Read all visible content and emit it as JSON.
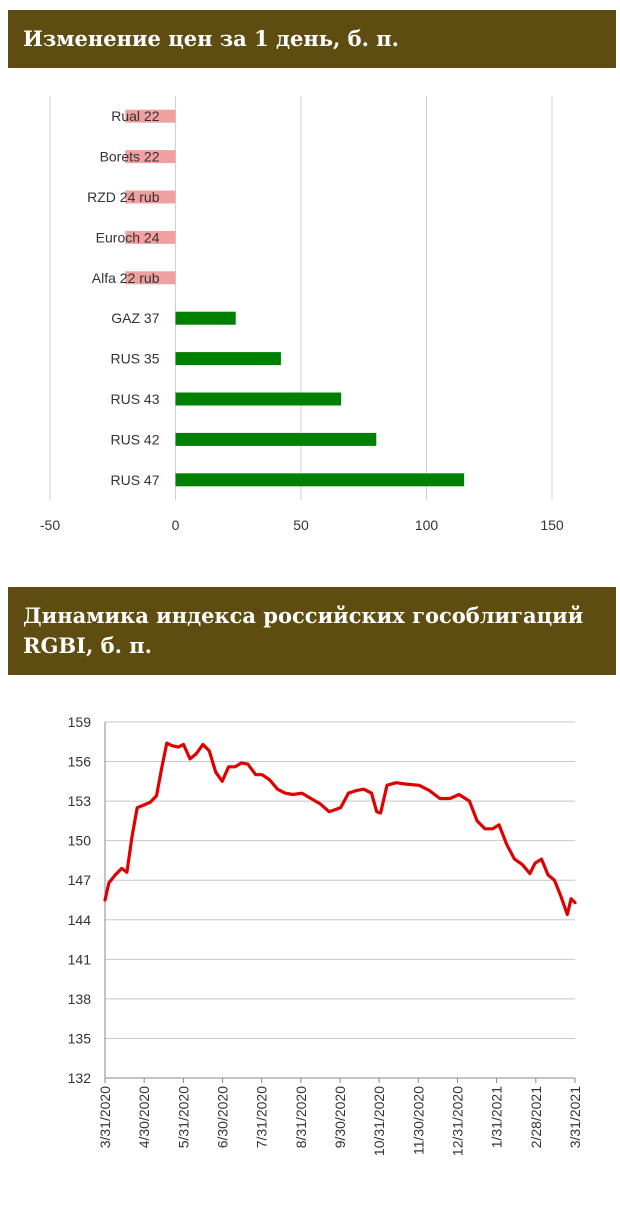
{
  "chart_data": [
    {
      "type": "bar",
      "orientation": "horizontal",
      "title": "Изменение цен за 1 день, б. п.",
      "categories": [
        "Rual 22",
        "Borets 22",
        "RZD 24 rub",
        "Euroch 24",
        "Alfa 22 rub",
        "GAZ 37",
        "RUS 35",
        "RUS 43",
        "RUS 42",
        "RUS 47"
      ],
      "values": [
        -20,
        -20,
        -20,
        -20,
        -20,
        24,
        42,
        66,
        80,
        115
      ],
      "xlim": [
        -50,
        150
      ],
      "xticks": [
        "-50",
        "0",
        "50",
        "100",
        "150"
      ],
      "grid": true,
      "colors": {
        "negative": "#f0a0a0",
        "positive": "#008000"
      }
    },
    {
      "type": "line",
      "title": "Динамика индекса российских гособлигаций RGBI, б. п.",
      "ylim": [
        132,
        159
      ],
      "yticks": [
        "159",
        "156",
        "153",
        "150",
        "147",
        "144",
        "141",
        "138",
        "135",
        "132"
      ],
      "xticks": [
        "3/31/2020",
        "4/30/2020",
        "5/31/2020",
        "6/30/2020",
        "7/31/2020",
        "8/31/2020",
        "9/30/2020",
        "10/31/2020",
        "11/30/2020",
        "12/31/2020",
        "1/31/2021",
        "2/28/2021",
        "3/31/2021"
      ],
      "grid": true,
      "series": [
        {
          "color": "#e00000",
          "points": [
            [
              "2020-03-31",
              145.5
            ],
            [
              "2020-04-03",
              146.8
            ],
            [
              "2020-04-08",
              147.4
            ],
            [
              "2020-04-13",
              147.9
            ],
            [
              "2020-04-17",
              147.6
            ],
            [
              "2020-04-21",
              150.3
            ],
            [
              "2020-04-25",
              152.5
            ],
            [
              "2020-04-30",
              152.7
            ],
            [
              "2020-05-05",
              152.9
            ],
            [
              "2020-05-10",
              153.4
            ],
            [
              "2020-05-14",
              155.5
            ],
            [
              "2020-05-18",
              157.4
            ],
            [
              "2020-05-22",
              157.2
            ],
            [
              "2020-05-27",
              157.1
            ],
            [
              "2020-05-31",
              157.3
            ],
            [
              "2020-06-05",
              156.2
            ],
            [
              "2020-06-10",
              156.6
            ],
            [
              "2020-06-15",
              157.3
            ],
            [
              "2020-06-20",
              156.8
            ],
            [
              "2020-06-25",
              155.2
            ],
            [
              "2020-06-30",
              154.5
            ],
            [
              "2020-07-05",
              155.6
            ],
            [
              "2020-07-10",
              155.6
            ],
            [
              "2020-07-15",
              155.9
            ],
            [
              "2020-07-20",
              155.8
            ],
            [
              "2020-07-26",
              155.0
            ],
            [
              "2020-07-31",
              155.0
            ],
            [
              "2020-08-06",
              154.6
            ],
            [
              "2020-08-12",
              153.9
            ],
            [
              "2020-08-18",
              153.6
            ],
            [
              "2020-08-24",
              153.5
            ],
            [
              "2020-08-31",
              153.6
            ],
            [
              "2020-09-07",
              153.2
            ],
            [
              "2020-09-14",
              152.8
            ],
            [
              "2020-09-21",
              152.2
            ],
            [
              "2020-09-30",
              152.5
            ],
            [
              "2020-10-06",
              153.6
            ],
            [
              "2020-10-12",
              153.8
            ],
            [
              "2020-10-18",
              153.9
            ],
            [
              "2020-10-24",
              153.6
            ],
            [
              "2020-10-28",
              152.2
            ],
            [
              "2020-10-31",
              152.1
            ],
            [
              "2020-11-05",
              154.2
            ],
            [
              "2020-11-12",
              154.4
            ],
            [
              "2020-11-19",
              154.3
            ],
            [
              "2020-11-30",
              154.2
            ],
            [
              "2020-12-08",
              153.8
            ],
            [
              "2020-12-16",
              153.2
            ],
            [
              "2020-12-24",
              153.2
            ],
            [
              "2020-12-31",
              153.5
            ],
            [
              "2021-01-08",
              153.0
            ],
            [
              "2021-01-14",
              151.5
            ],
            [
              "2021-01-20",
              150.9
            ],
            [
              "2021-01-26",
              150.9
            ],
            [
              "2021-01-31",
              151.2
            ],
            [
              "2021-02-06",
              149.7
            ],
            [
              "2021-02-12",
              148.6
            ],
            [
              "2021-02-18",
              148.2
            ],
            [
              "2021-02-24",
              147.5
            ],
            [
              "2021-02-28",
              148.3
            ],
            [
              "2021-03-05",
              148.6
            ],
            [
              "2021-03-10",
              147.4
            ],
            [
              "2021-03-15",
              147.0
            ],
            [
              "2021-03-20",
              145.8
            ],
            [
              "2021-03-25",
              144.4
            ],
            [
              "2021-03-28",
              145.6
            ],
            [
              "2021-03-31",
              145.3
            ]
          ]
        }
      ]
    }
  ]
}
